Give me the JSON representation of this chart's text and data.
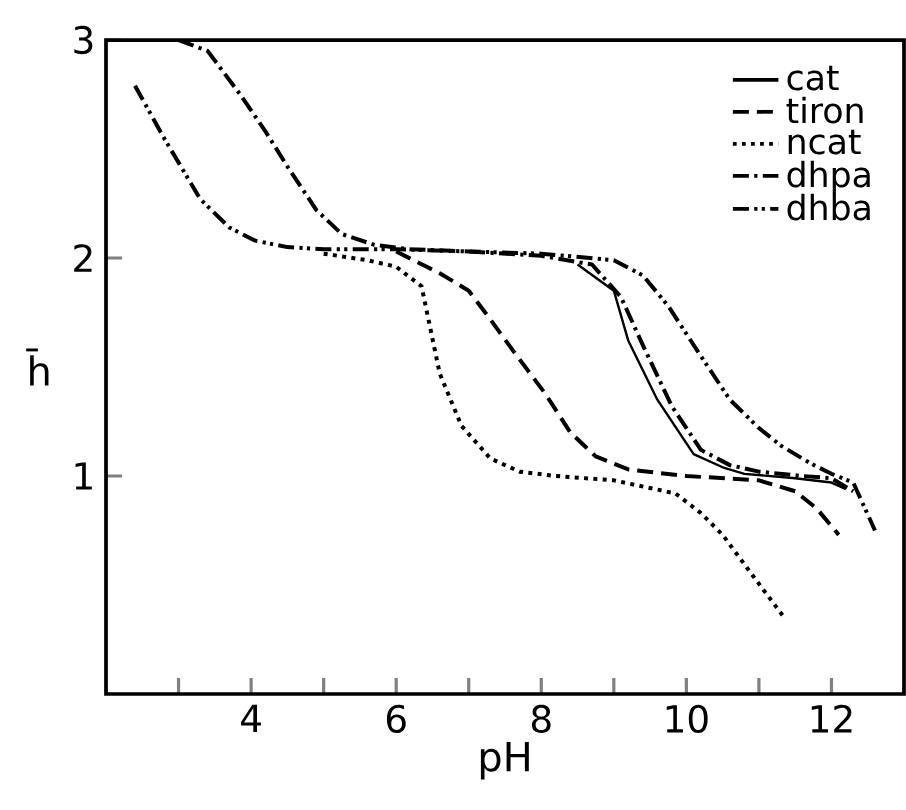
{
  "chart_data": {
    "type": "line",
    "xlabel": "pH",
    "ylabel": "h̄",
    "xlim": [
      2,
      13
    ],
    "ylim": [
      0,
      3
    ],
    "xticks": [
      {
        "value": 3,
        "label": null
      },
      4,
      {
        "value": 5,
        "label": null
      },
      6,
      {
        "value": 7,
        "label": null
      },
      8,
      {
        "value": 9,
        "label": null
      },
      10,
      {
        "value": 11,
        "label": null
      },
      12
    ],
    "yticks": [
      1,
      2,
      3
    ],
    "grid": false,
    "legend": "top right",
    "marker": "none",
    "series": [
      {
        "name": "cat",
        "color": "#000000",
        "line_style": "solid",
        "x": [
          8.5,
          9.0,
          9.2,
          9.6,
          10.1,
          10.5,
          10.8,
          11.5,
          12.0,
          12.2
        ],
        "values": [
          1.97,
          1.85,
          1.62,
          1.35,
          1.1,
          1.04,
          1.01,
          0.99,
          0.97,
          0.94
        ]
      },
      {
        "name": "tiron",
        "color": "#000000",
        "line_style": "dashed",
        "x": [
          6.0,
          6.6,
          7.0,
          7.25,
          7.6,
          8.05,
          8.4,
          8.75,
          9.2,
          10.0,
          11.0,
          11.5,
          11.8,
          12.1
        ],
        "values": [
          2.03,
          1.93,
          1.85,
          1.74,
          1.58,
          1.38,
          1.2,
          1.09,
          1.03,
          1.0,
          0.98,
          0.93,
          0.85,
          0.73
        ]
      },
      {
        "name": "ncat",
        "color": "#000000",
        "line_style": "dotted",
        "x": [
          5.0,
          5.6,
          6.0,
          6.35,
          6.6,
          6.9,
          7.3,
          7.7,
          8.2,
          9.0,
          9.85,
          10.2,
          10.5,
          10.9,
          11.35
        ],
        "values": [
          2.02,
          1.99,
          1.96,
          1.87,
          1.47,
          1.23,
          1.08,
          1.02,
          1.0,
          0.98,
          0.92,
          0.83,
          0.73,
          0.55,
          0.35
        ]
      },
      {
        "name": "dhpa",
        "color": "#000000",
        "line_style": "dashdot",
        "x": [
          3.0,
          3.4,
          3.85,
          4.2,
          4.5,
          4.9,
          5.25,
          5.7,
          6.2,
          7.0,
          8.0,
          8.7,
          9.1,
          9.4,
          9.8,
          10.2,
          10.6,
          11.0,
          11.6,
          12.0,
          12.3
        ],
        "values": [
          3.0,
          2.95,
          2.75,
          2.58,
          2.42,
          2.22,
          2.11,
          2.06,
          2.04,
          2.03,
          2.01,
          1.97,
          1.82,
          1.6,
          1.32,
          1.12,
          1.05,
          1.02,
          1.0,
          0.99,
          0.93
        ]
      },
      {
        "name": "dhba",
        "color": "#000000",
        "line_style": "dashdotdot",
        "x": [
          2.4,
          2.8,
          3.3,
          3.7,
          4.05,
          4.5,
          5.0,
          6.0,
          7.0,
          8.0,
          9.0,
          9.4,
          9.75,
          10.2,
          10.6,
          11.0,
          11.3,
          11.7,
          12.0,
          12.3,
          12.6
        ],
        "values": [
          2.79,
          2.55,
          2.27,
          2.14,
          2.08,
          2.05,
          2.04,
          2.04,
          2.03,
          2.02,
          1.99,
          1.92,
          1.78,
          1.55,
          1.35,
          1.22,
          1.14,
          1.06,
          1.01,
          0.97,
          0.75
        ]
      }
    ]
  }
}
